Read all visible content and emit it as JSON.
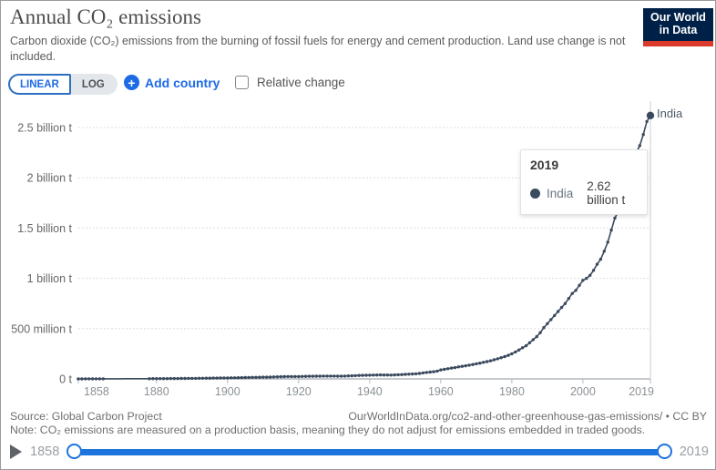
{
  "header": {
    "title": "Annual CO₂ emissions",
    "subtitle": "Carbon dioxide (CO₂) emissions from the burning of fossil fuels for energy and cement production. Land use change is not included.",
    "logo": {
      "line1": "Our World",
      "line2": "in Data"
    }
  },
  "controls": {
    "linear_label": "LINEAR",
    "log_label": "LOG",
    "add_country_label": "Add country",
    "plus_icon": "+",
    "relative_change_label": "Relative change",
    "relative_change_checked": false
  },
  "tooltip": {
    "year": "2019",
    "series": "India",
    "value": "2.62 billion t"
  },
  "end_label": "India",
  "footer": {
    "source": "Source: Global Carbon Project",
    "url": "OurWorldInData.org/co2-and-other-greenhouse-gas-emissions/ • CC BY",
    "note": "Note: CO₂ emissions are measured on a production basis, meaning they do not adjust for emissions embedded in traded goods."
  },
  "timeline": {
    "start": "1858",
    "end": "2019"
  },
  "colors": {
    "accent_blue": "#1d6ae5",
    "slider_blue": "#1d74dd",
    "series_line": "#3b4a5e",
    "logo_bg": "#002147",
    "logo_red": "#d93a2b",
    "gridline": "#dedede",
    "axis_text": "#8b9196"
  },
  "chart_data": {
    "type": "line",
    "title": "Annual CO₂ emissions",
    "xlabel": "",
    "ylabel": "",
    "unit": "tonnes CO₂ (values in million tonnes)",
    "xlim": [
      1858,
      2019
    ],
    "ylim_mt": [
      0,
      2500
    ],
    "grid": true,
    "legend_position": "end-of-line",
    "x_ticks": [
      1858,
      1880,
      1900,
      1920,
      1940,
      1960,
      1980,
      2000,
      2019
    ],
    "y_ticks": [
      {
        "label": "0 t",
        "mt": 0
      },
      {
        "label": "500 million t",
        "mt": 500
      },
      {
        "label": "1 billion t",
        "mt": 1000
      },
      {
        "label": "1.5 billion t",
        "mt": 1500
      },
      {
        "label": "2 billion t",
        "mt": 2000
      },
      {
        "label": "2.5 billion t",
        "mt": 2500
      }
    ],
    "marker_gap_years": [
      1866,
      1877
    ],
    "series": [
      {
        "name": "India",
        "color": "#3b4a5e",
        "last_point": {
          "year": 2019,
          "value_label": "2.62 billion t",
          "value_mt": 2620
        },
        "years": [
          1858,
          1859,
          1860,
          1861,
          1862,
          1863,
          1864,
          1865,
          1866,
          1867,
          1868,
          1869,
          1870,
          1871,
          1872,
          1873,
          1874,
          1875,
          1876,
          1877,
          1878,
          1879,
          1880,
          1881,
          1882,
          1883,
          1884,
          1885,
          1886,
          1887,
          1888,
          1889,
          1890,
          1891,
          1892,
          1893,
          1894,
          1895,
          1896,
          1897,
          1898,
          1899,
          1900,
          1901,
          1902,
          1903,
          1904,
          1905,
          1906,
          1907,
          1908,
          1909,
          1910,
          1911,
          1912,
          1913,
          1914,
          1915,
          1916,
          1917,
          1918,
          1919,
          1920,
          1921,
          1922,
          1923,
          1924,
          1925,
          1926,
          1927,
          1928,
          1929,
          1930,
          1931,
          1932,
          1933,
          1934,
          1935,
          1936,
          1937,
          1938,
          1939,
          1940,
          1941,
          1942,
          1943,
          1944,
          1945,
          1946,
          1947,
          1948,
          1949,
          1950,
          1951,
          1952,
          1953,
          1954,
          1955,
          1956,
          1957,
          1958,
          1959,
          1960,
          1961,
          1962,
          1963,
          1964,
          1965,
          1966,
          1967,
          1968,
          1969,
          1970,
          1971,
          1972,
          1973,
          1974,
          1975,
          1976,
          1977,
          1978,
          1979,
          1980,
          1981,
          1982,
          1983,
          1984,
          1985,
          1986,
          1987,
          1988,
          1989,
          1990,
          1991,
          1992,
          1993,
          1994,
          1995,
          1996,
          1997,
          1998,
          1999,
          2000,
          2001,
          2002,
          2003,
          2004,
          2005,
          2006,
          2007,
          2008,
          2009,
          2010,
          2011,
          2012,
          2013,
          2014,
          2015,
          2016,
          2017,
          2018,
          2019
        ],
        "values_mt": [
          0.4,
          0.45,
          0.5,
          0.55,
          0.6,
          0.65,
          0.7,
          0.8,
          0.9,
          1.0,
          1.1,
          1.2,
          1.3,
          1.4,
          1.5,
          1.6,
          1.7,
          1.8,
          1.9,
          2.0,
          2.1,
          2.3,
          2.5,
          2.7,
          2.9,
          3.1,
          3.3,
          3.6,
          3.9,
          4.2,
          4.6,
          5.0,
          5.5,
          5.8,
          6.1,
          6.5,
          6.9,
          7.3,
          7.8,
          8.4,
          8.9,
          9.4,
          10,
          10.6,
          11.2,
          11.9,
          12.6,
          13.3,
          14.1,
          15,
          15.8,
          16.4,
          17,
          17.6,
          18.5,
          19.5,
          20.5,
          21.5,
          22.3,
          23.2,
          24,
          23.5,
          24,
          24.5,
          25,
          26,
          26.5,
          27,
          27,
          28,
          28.5,
          28.5,
          28,
          27.5,
          27.5,
          28,
          29.5,
          31,
          32.5,
          34,
          35,
          36,
          37,
          38,
          38.5,
          39.5,
          39,
          38.5,
          38,
          39.5,
          41.5,
          43,
          45,
          47,
          49,
          51,
          54,
          60,
          64,
          68,
          72,
          78,
          90,
          95,
          101,
          108,
          112,
          120,
          125,
          130,
          137,
          143,
          150,
          157,
          165,
          172,
          180,
          190,
          200,
          211,
          222,
          235,
          250,
          268,
          288,
          310,
          330,
          360,
          390,
          420,
          460,
          510,
          550,
          590,
          630,
          670,
          710,
          750,
          800,
          850,
          880,
          930,
          980,
          1000,
          1030,
          1080,
          1140,
          1190,
          1270,
          1360,
          1480,
          1600,
          1670,
          1760,
          1910,
          1960,
          2130,
          2250,
          2320,
          2430,
          2560,
          2620
        ]
      }
    ]
  }
}
